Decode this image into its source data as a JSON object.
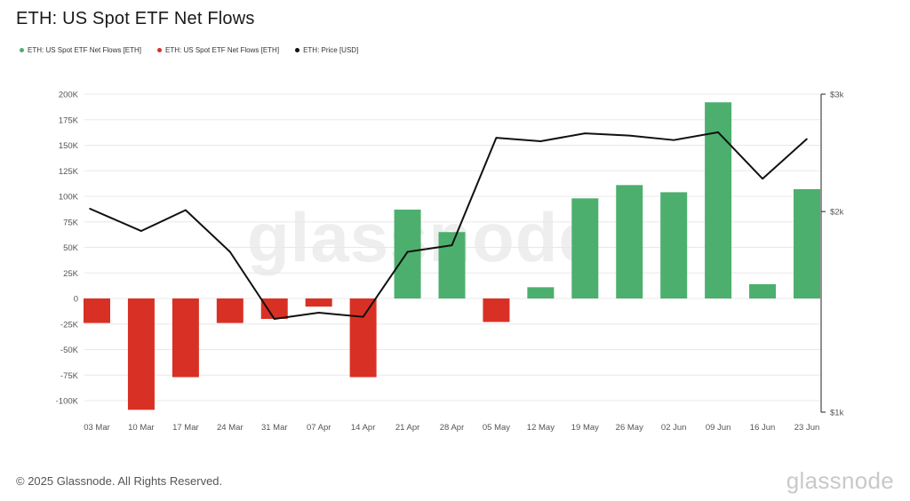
{
  "title": "ETH: US Spot ETF Net Flows",
  "legend": [
    {
      "label": "ETH: US Spot ETF Net Flows [ETH]",
      "color": "#4caf6e"
    },
    {
      "label": "ETH: US Spot ETF Net Flows [ETH]",
      "color": "#d93025"
    },
    {
      "label": "ETH: Price [USD]",
      "color": "#111111"
    }
  ],
  "footer": "© 2025 Glassnode. All Rights Reserved.",
  "brand": "glassnode",
  "watermark": "glassnode",
  "colors": {
    "positive": "#4caf6e",
    "negative": "#d93025",
    "price": "#111111",
    "grid": "#e8e8e8"
  },
  "chart_data": {
    "type": "bar",
    "categories": [
      "03 Mar",
      "10 Mar",
      "17 Mar",
      "24 Mar",
      "31 Mar",
      "07 Apr",
      "14 Apr",
      "21 Apr",
      "28 Apr",
      "05 May",
      "12 May",
      "19 May",
      "26 May",
      "02 Jun",
      "09 Jun",
      "16 Jun",
      "23 Jun"
    ],
    "series": [
      {
        "name": "ETH: US Spot ETF Net Flows [ETH]",
        "axis": "left",
        "values": [
          -24000,
          -109000,
          -77000,
          -24000,
          -20000,
          -8000,
          -77000,
          87000,
          65000,
          -23000,
          11000,
          98000,
          111000,
          104000,
          192000,
          14000,
          107000
        ]
      },
      {
        "name": "ETH: Price [USD]",
        "axis": "right",
        "values": [
          2020,
          1870,
          2010,
          1740,
          1380,
          1410,
          1390,
          1740,
          1780,
          2580,
          2550,
          2620,
          2600,
          2560,
          2630,
          2240,
          2570
        ]
      }
    ],
    "left_axis": {
      "ticks": [
        200000,
        175000,
        150000,
        125000,
        100000,
        75000,
        50000,
        25000,
        0,
        -25000,
        -50000,
        -75000,
        -100000
      ],
      "tick_labels": [
        "200K",
        "175K",
        "150K",
        "125K",
        "100K",
        "75K",
        "50K",
        "25K",
        "0",
        "-25K",
        "-50K",
        "-75K",
        "-100K"
      ],
      "ylim": [
        -108000,
        200000
      ]
    },
    "right_axis": {
      "scale": "log",
      "ticks": [
        3000,
        2000,
        1000
      ],
      "tick_labels": [
        "$3k",
        "$2k",
        "$1k"
      ],
      "ylim": [
        1000,
        3000
      ]
    },
    "grid": true
  }
}
